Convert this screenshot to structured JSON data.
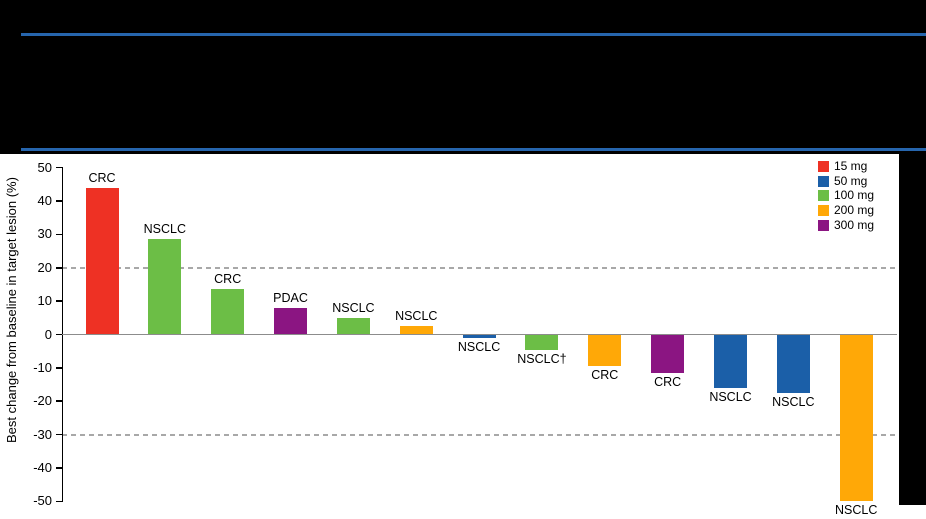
{
  "header": {
    "style": "redacted-black-banner",
    "rule_color": "#2665AD",
    "background": "#000000"
  },
  "chart_data": {
    "type": "bar",
    "subtype": "waterfall",
    "title": "",
    "xlabel": "",
    "ylabel": "Best change from baseline in target lesion (%)",
    "ylim": [
      -50,
      50
    ],
    "yticks": [
      50,
      40,
      30,
      20,
      10,
      0,
      -10,
      -20,
      -30,
      -40,
      -50
    ],
    "reference_lines": [
      20,
      -30
    ],
    "reference_line_style": "dashed gray",
    "zero_line_color": "#8C8C8C",
    "axis_color": "#000000",
    "grid": "off",
    "legend": {
      "position": "top-right",
      "entries": [
        {
          "label": "15 mg",
          "color": "#EE3124"
        },
        {
          "label": "50 mg",
          "color": "#1B5FA8"
        },
        {
          "label": "100 mg",
          "color": "#6CBE46"
        },
        {
          "label": "200 mg",
          "color": "#FFA807"
        },
        {
          "label": "300 mg",
          "color": "#8B1582"
        }
      ]
    },
    "dose_colors": {
      "15 mg": "#EE3124",
      "50 mg": "#1B5FA8",
      "100 mg": "#6CBE46",
      "200 mg": "#FFA807",
      "300 mg": "#8B1582"
    },
    "bars": [
      {
        "label": "CRC",
        "dose": "15 mg",
        "value": 44
      },
      {
        "label": "NSCLC",
        "dose": "100 mg",
        "value": 28.5
      },
      {
        "label": "CRC",
        "dose": "100 mg",
        "value": 13.5
      },
      {
        "label": "PDAC",
        "dose": "300 mg",
        "value": 8
      },
      {
        "label": "NSCLC",
        "dose": "100 mg",
        "value": 5
      },
      {
        "label": "NSCLC",
        "dose": "200 mg",
        "value": 2.5
      },
      {
        "label": "NSCLC",
        "dose": "50 mg",
        "value": -1
      },
      {
        "label": "NSCLC†",
        "dose": "100 mg",
        "value": -4.5
      },
      {
        "label": "CRC",
        "dose": "200 mg",
        "value": -9.5
      },
      {
        "label": "CRC",
        "dose": "300 mg",
        "value": -11.5
      },
      {
        "label": "NSCLC",
        "dose": "50 mg",
        "value": -16
      },
      {
        "label": "NSCLC",
        "dose": "50 mg",
        "value": -17.5
      },
      {
        "label": "NSCLC",
        "dose": "200 mg",
        "value": -50
      }
    ]
  }
}
